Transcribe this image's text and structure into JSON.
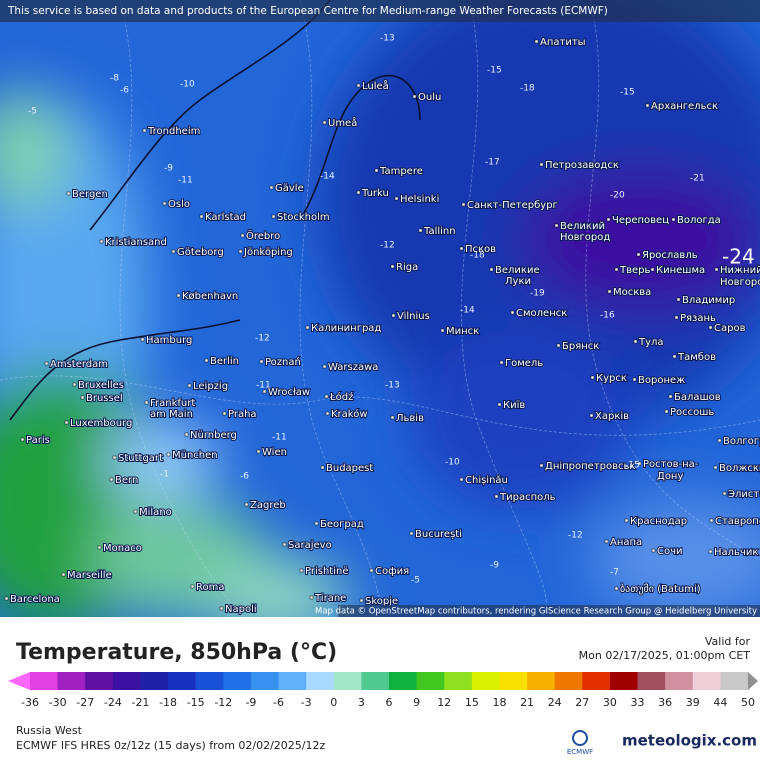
{
  "banner": "This service is based on data and products of the European Centre for Medium-range Weather Forecasts (ECMWF)",
  "attribution": "Map data © OpenStreetMap contributors, rendering GIScience Research Group @ Heidelberg University",
  "map": {
    "big_label": "-24",
    "cities": [
      "Апатиты",
      "Luleå",
      "Oulu",
      "Архангельск",
      "Umeå",
      "Trondheim",
      "Петрозаводск",
      "Tampere",
      "Gävle",
      "Turku",
      "Bergen",
      "Oslo",
      "Karlstad",
      "Stockholm",
      "Helsinki",
      "Санкт-Петербург",
      "Череповец",
      "Вологда",
      "Великий",
      "Новгород",
      "Örebro",
      "Tallinn",
      "Kristiansand",
      "Göteborg",
      "Jönköping",
      "Псков",
      "Ярославль",
      "Тверь",
      "Кинешма",
      "Нижний",
      "Новгород",
      "Riga",
      "Великие",
      "Луки",
      "København",
      "Москва",
      "Владимир",
      "Смоленск",
      "Vilnius",
      "Минск",
      "Калининград",
      "Рязань",
      "Hamburg",
      "Тула",
      "Саров",
      "Брянск",
      "Amsterdam",
      "Berlin",
      "Poznań",
      "Гомель",
      "Тамбов",
      "Warszawa",
      "Bruxelles",
      "Brussel",
      "Leipzig",
      "Wrocław",
      "Łódź",
      "Курск",
      "Воронеж",
      "Frankfurt",
      "am Main",
      "Київ",
      "Kraków",
      "Львів",
      "Харків",
      "Балашов",
      "Россошь",
      "Praha",
      "Luxembourg",
      "Paris",
      "Nürnberg",
      "Stuttgart",
      "München",
      "Wien",
      "Волгоград",
      "Budapest",
      "Chișinău",
      "Дніпропетровськ",
      "Ростов-на-",
      "Дону",
      "Волжский",
      "Bern",
      "Тирасполь",
      "Элиста",
      "Zagreb",
      "Milano",
      "Краснодар",
      "Ставрополь",
      "Београд",
      "București",
      "Sarajevo",
      "Анапа",
      "Сочи",
      "Нальчик",
      "Monaco",
      "Marseille",
      "Prishtinë",
      "София",
      "Roma",
      "ბათუმი (Batumi)",
      "Tirane",
      "Barcelona",
      "Skopje",
      "Napoli"
    ],
    "contour_labels": [
      "-13",
      "-15",
      "-18",
      "-15",
      "-10",
      "-8",
      "-6",
      "-5",
      "-12",
      "-9",
      "-11",
      "-14",
      "-17",
      "-18",
      "-19",
      "-21",
      "-20",
      "-11",
      "-12",
      "-11",
      "-6",
      "-1",
      "-5",
      "-9",
      "-7",
      "-14",
      "-16",
      "-15",
      "-10",
      "-12",
      "-13"
    ]
  },
  "legend": {
    "title": "Temperature, 850hPa (°C)",
    "valid_label": "Valid for",
    "valid_time": "Mon 02/17/2025, 01:00pm CET",
    "colorbar": {
      "ticks": [
        -36,
        -30,
        -27,
        -24,
        -21,
        -18,
        -15,
        -12,
        -9,
        -6,
        -3,
        0,
        3,
        6,
        9,
        12,
        15,
        18,
        21,
        24,
        27,
        30,
        33,
        36,
        39,
        44,
        50
      ],
      "colors": [
        "#ff66ff",
        "#e040e0",
        "#a020c0",
        "#6010a0",
        "#3a10a0",
        "#2020a8",
        "#1830c0",
        "#1850d8",
        "#2070e8",
        "#3890f0",
        "#60b0f8",
        "#a8d8ff",
        "#a0e8c8",
        "#50c890",
        "#10b040",
        "#40c820",
        "#90e020",
        "#d8f000",
        "#f8e000",
        "#f8b000",
        "#f07800",
        "#e03000",
        "#a00000",
        "#a05060",
        "#d090a0",
        "#f0d0d8",
        "#c8c8c8",
        "#909090"
      ]
    }
  },
  "footer": {
    "region": "Russia West",
    "model": "ECMWF IFS HRES 0z/12z (15 days) from 02/02/2025/12z",
    "logo_small": "ECMWF",
    "logo": "meteologix.com"
  }
}
